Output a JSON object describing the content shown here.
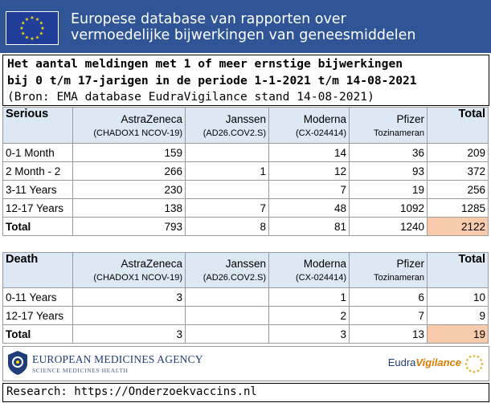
{
  "banner": {
    "line1": "Europese database van rapporten over",
    "line2": "vermoedelijke bijwerkingen van geneesmiddelen",
    "flag_icon": "eu-flag-icon",
    "colors": {
      "banner": "#2f5597",
      "flag": "#1f3d99",
      "stars": "#ffdd00"
    }
  },
  "title": {
    "line1": "Het aantal meldingen met 1 of meer ernstige bijwerkingen",
    "line2": "bij 0 t/m 17-jarigen in de periode 1-1-2021 t/m 14-08-2021",
    "line3": "(Bron: EMA database EudraVigilance stand 14-08-2021)"
  },
  "serious": {
    "label": "Serious",
    "total_label": "Total",
    "vaccines": [
      {
        "name": "AstraZeneca",
        "code": "(CHADOX1 NCOV-19)"
      },
      {
        "name": "Janssen",
        "code": "(AD26.COV2.S)"
      },
      {
        "name": "Moderna",
        "code": "(CX-024414)"
      },
      {
        "name": "Pfizer",
        "code": "Tozinameran"
      }
    ],
    "rows": [
      {
        "label": "0-1 Month",
        "values": [
          "159",
          "",
          "14",
          "36",
          "209"
        ]
      },
      {
        "label": "2 Month - 2",
        "values": [
          "266",
          "1",
          "12",
          "93",
          "372"
        ]
      },
      {
        "label": "3-11 Years",
        "values": [
          "230",
          "",
          "7",
          "19",
          "256"
        ]
      },
      {
        "label": "12-17 Years",
        "values": [
          "138",
          "7",
          "48",
          "1092",
          "1285"
        ]
      }
    ],
    "totals": {
      "label": "Total",
      "values": [
        "793",
        "8",
        "81",
        "1240",
        "2122"
      ]
    }
  },
  "death": {
    "label": "Death",
    "total_label": "Total",
    "vaccines": [
      {
        "name": "AstraZeneca",
        "code": "(CHADOX1 NCOV-19)"
      },
      {
        "name": "Janssen",
        "code": "(AD26.COV2.S)"
      },
      {
        "name": "Moderna",
        "code": "(CX-024414)"
      },
      {
        "name": "Pfizer",
        "code": "Tozinameran"
      }
    ],
    "rows": [
      {
        "label": "0-11 Years",
        "values": [
          "3",
          "",
          "1",
          "6",
          "10"
        ]
      },
      {
        "label": "12-17 Years",
        "values": [
          "",
          "",
          "2",
          "7",
          "9"
        ]
      }
    ],
    "totals": {
      "label": "Total",
      "values": [
        "3",
        "",
        "3",
        "13",
        "19"
      ]
    }
  },
  "logos": {
    "ema_name": "EUROPEAN MEDICINES AGENCY",
    "ema_sub": "SCIENCE  MEDICINES  HEALTH",
    "eudra_prefix": "Eudra",
    "eudra_suffix": "Vigilance"
  },
  "footer": {
    "text": "Research: https://Onderzoekvaccins.nl"
  },
  "colors": {
    "header_fill": "#dde8f5",
    "grand_total_fill": "#f8cbad"
  }
}
